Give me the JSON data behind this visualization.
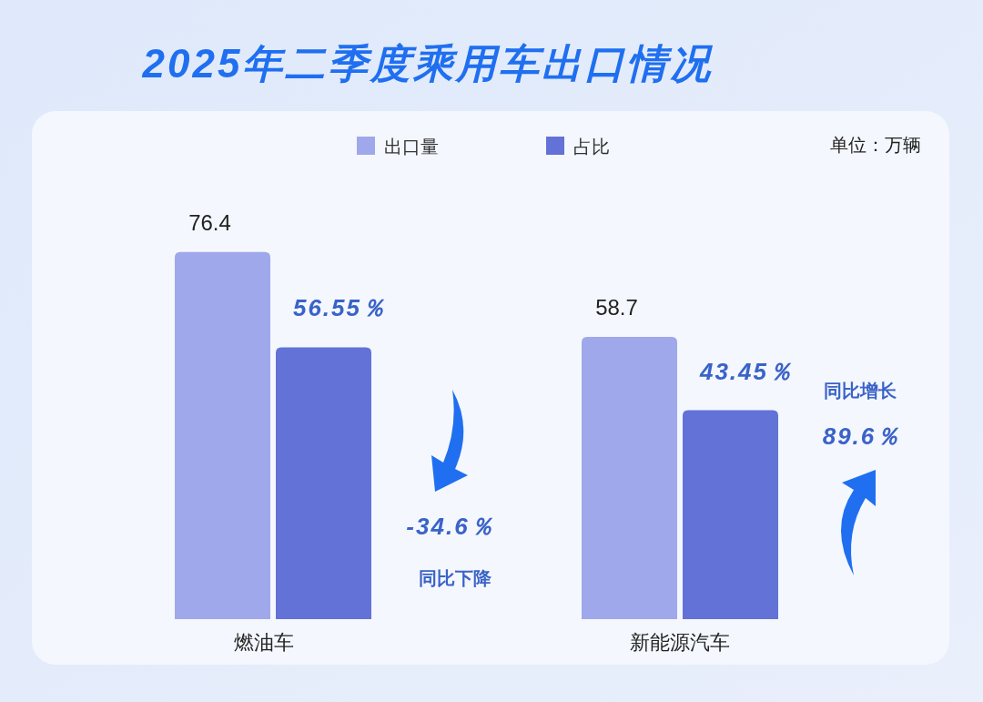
{
  "chart_data": {
    "type": "bar",
    "title": "2025年二季度乘用车出口情况",
    "categories": [
      "燃油车",
      "新能源汽车"
    ],
    "series": [
      {
        "name": "出口量",
        "color": "#9fa8ea",
        "values": [
          76.4,
          58.7
        ],
        "value_labels": [
          "76.4",
          "58.7"
        ]
      },
      {
        "name": "占比",
        "color": "#6272d6",
        "values": [
          56.55,
          43.45
        ],
        "value_labels": [
          "56.55％",
          "43.45％"
        ]
      }
    ],
    "legend": "top",
    "annotations": [
      "单位：万辆",
      "-34.6％",
      "同比下降",
      "同比增长",
      "89.6％"
    ]
  }
}
